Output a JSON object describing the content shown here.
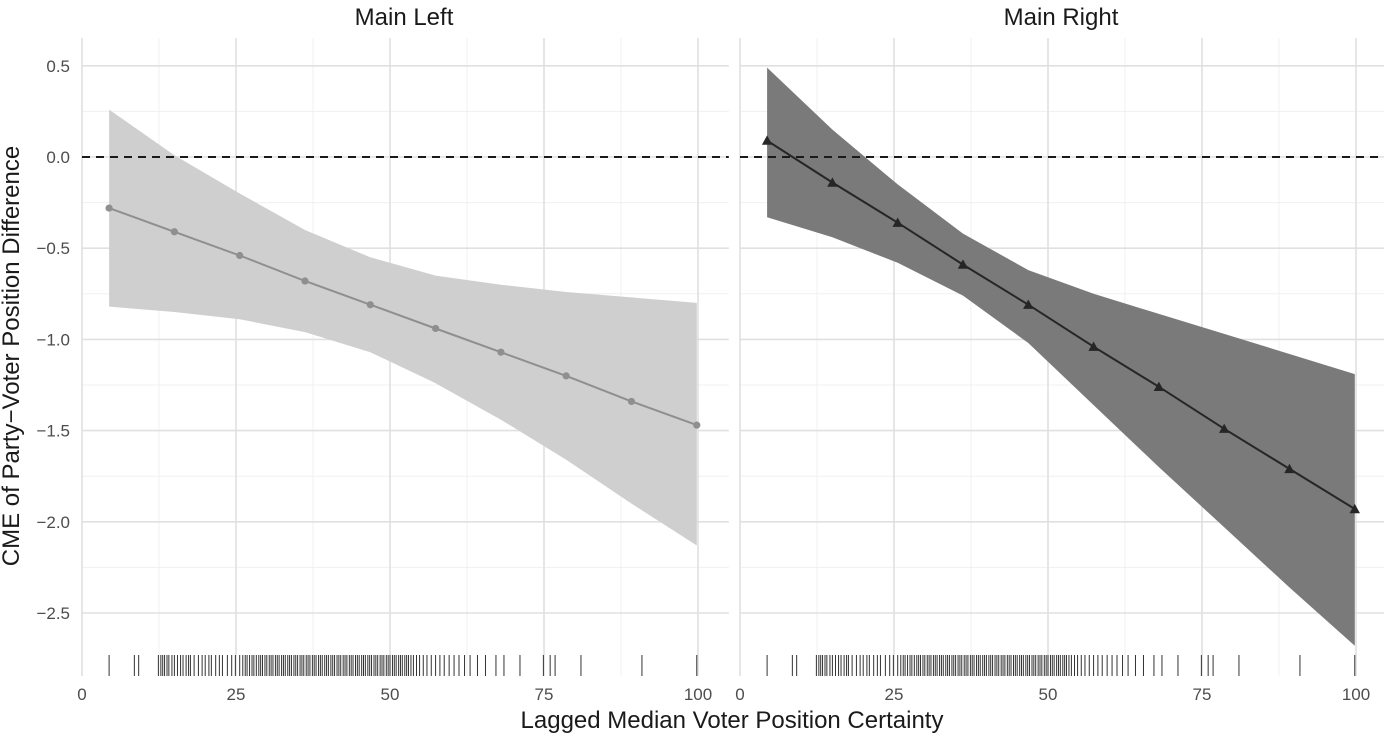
{
  "chart_data": {
    "type": "line",
    "xlabel": "Lagged Median Voter Position Certainty",
    "ylabel": "CME of Party−Voter Position Difference",
    "xlim": [
      0,
      105
    ],
    "ylim": [
      -2.8,
      0.6
    ],
    "x_ticks": [
      0,
      25,
      50,
      75,
      100
    ],
    "x_tick_labels": [
      "0",
      "25",
      "50",
      "75",
      "100"
    ],
    "y_ticks": [
      0.5,
      0.0,
      -0.5,
      -1.0,
      -1.5,
      -2.0,
      -2.5
    ],
    "y_tick_labels": [
      "0.5",
      "0.0",
      "−0.5",
      "−1.0",
      "−1.5",
      "−2.0",
      "−2.5"
    ],
    "reference_line": 0,
    "grid": true,
    "panels": [
      {
        "title": "Main Left",
        "marker": "circle",
        "line_color": "#8f8f8f",
        "band_color": "#cfcfcf",
        "x": [
          4.4,
          15.0,
          25.6,
          36.2,
          46.8,
          57.4,
          68.0,
          78.6,
          89.2,
          99.8
        ],
        "estimate": [
          -0.28,
          -0.41,
          -0.54,
          -0.68,
          -0.81,
          -0.94,
          -1.07,
          -1.2,
          -1.34,
          -1.47
        ],
        "band_x": [
          4.4,
          15.0,
          25.6,
          36.2,
          46.8,
          57.4,
          68.0,
          78.6,
          89.2,
          99.8
        ],
        "upper": [
          0.26,
          0.01,
          -0.2,
          -0.4,
          -0.55,
          -0.65,
          -0.7,
          -0.74,
          -0.77,
          -0.8
        ],
        "lower": [
          -0.82,
          -0.85,
          -0.89,
          -0.96,
          -1.07,
          -1.24,
          -1.44,
          -1.66,
          -1.9,
          -2.13
        ]
      },
      {
        "title": "Main Right",
        "marker": "triangle",
        "line_color": "#262626",
        "band_color": "#7a7a7a",
        "x": [
          4.4,
          15.0,
          25.6,
          36.2,
          46.8,
          57.4,
          68.0,
          78.6,
          89.2,
          99.8
        ],
        "estimate": [
          0.09,
          -0.14,
          -0.36,
          -0.59,
          -0.81,
          -1.04,
          -1.26,
          -1.49,
          -1.71,
          -1.93
        ],
        "band_x": [
          4.4,
          15.0,
          25.6,
          36.2,
          46.8,
          57.4,
          68.0,
          78.6,
          89.2,
          99.8
        ],
        "upper": [
          0.49,
          0.15,
          -0.15,
          -0.42,
          -0.62,
          -0.75,
          -0.86,
          -0.97,
          -1.08,
          -1.19
        ],
        "lower": [
          -0.33,
          -0.44,
          -0.58,
          -0.76,
          -1.02,
          -1.36,
          -1.7,
          -2.03,
          -2.36,
          -2.68
        ]
      }
    ],
    "rug_x": [
      4.4,
      8.5,
      9.2,
      12.4,
      12.8,
      13.1,
      13.4,
      13.8,
      14.1,
      14.6,
      15.0,
      15.5,
      16.0,
      16.4,
      16.9,
      17.3,
      17.6,
      18.2,
      18.9,
      19.5,
      20.0,
      20.6,
      21.0,
      21.7,
      22.3,
      22.8,
      23.6,
      24.3,
      24.9,
      25.6,
      26.1,
      26.5,
      26.8,
      27.2,
      27.6,
      27.9,
      28.3,
      28.7,
      29.0,
      29.3,
      29.7,
      30.0,
      30.4,
      30.7,
      31.0,
      31.4,
      31.7,
      32.0,
      32.4,
      32.7,
      33.0,
      33.4,
      33.7,
      34.0,
      34.4,
      34.7,
      35.0,
      35.4,
      35.7,
      36.0,
      36.4,
      36.7,
      37.0,
      37.4,
      37.7,
      38.0,
      38.4,
      38.7,
      39.0,
      39.4,
      39.7,
      40.0,
      40.4,
      40.7,
      41.0,
      41.4,
      41.7,
      42.0,
      42.4,
      42.7,
      43.0,
      43.4,
      43.7,
      44.0,
      44.4,
      44.7,
      45.0,
      45.4,
      45.7,
      46.0,
      46.4,
      46.7,
      47.0,
      47.4,
      47.7,
      48.0,
      48.4,
      48.7,
      49.0,
      49.4,
      49.7,
      50.0,
      50.4,
      50.7,
      51.0,
      51.4,
      51.7,
      52.0,
      52.4,
      52.7,
      53.0,
      53.4,
      53.8,
      54.3,
      54.8,
      55.4,
      56.0,
      56.7,
      57.4,
      58.1,
      58.8,
      59.6,
      60.4,
      61.2,
      62.1,
      63.0,
      64.2,
      65.5,
      67.2,
      68.5,
      71.1,
      74.9,
      76.0,
      76.8,
      81.0,
      90.9,
      99.8
    ]
  }
}
